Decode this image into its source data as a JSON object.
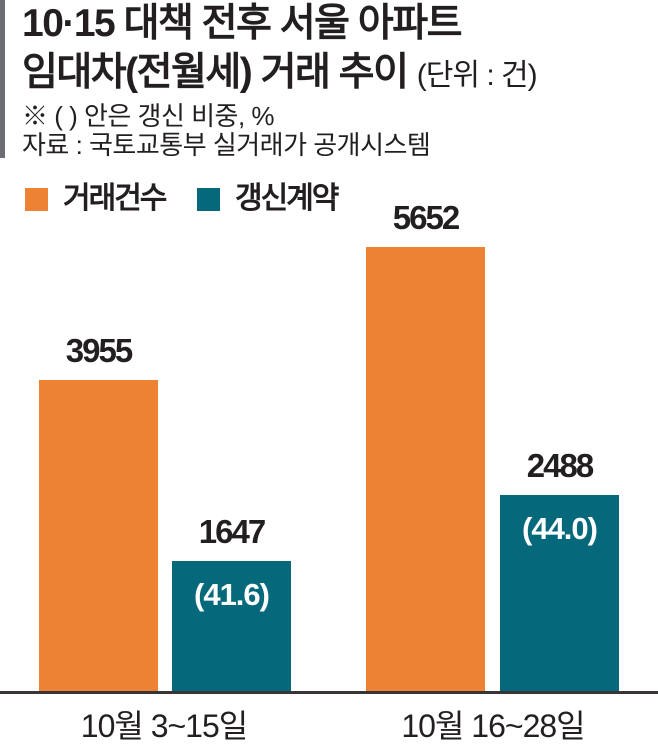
{
  "header": {
    "title_line1": "10·15 대책 전후 서울 아파트",
    "title_line2": "임대차(전월세) 거래 추이",
    "title_unit": "(단위 : 건)",
    "note": "※ ( ) 안은 갱신 비중, %",
    "source": "자료 : 국토교통부 실거래가 공개시스템"
  },
  "legend": [
    {
      "label": "거래건수",
      "color": "#ed8234"
    },
    {
      "label": "갱신계약",
      "color": "#06697b"
    }
  ],
  "chart_data": {
    "type": "bar",
    "title": "10·15 대책 전후 서울 아파트 임대차(전월세) 거래 추이",
    "unit_label": "(단위 : 건)",
    "note": "※ ( ) 안은 갱신 비중, %",
    "source": "자료 : 국토교통부 실거래가 공개시스템",
    "categories": [
      "10월 3~15일",
      "10월 16~28일"
    ],
    "series": [
      {
        "name": "거래건수",
        "color": "#ed8234",
        "values": [
          3955,
          5652
        ]
      },
      {
        "name": "갱신계약",
        "color": "#06697b",
        "values": [
          1647,
          2488
        ],
        "annotations": [
          "(41.6)",
          "(44.0)"
        ]
      }
    ],
    "ylim": [
      0,
      5800
    ],
    "grid": false,
    "axis_lines": "baseline-only",
    "legend_position": "top-left",
    "value_labels": true
  },
  "colors": {
    "orange": "#ed8234",
    "teal": "#06697b",
    "text": "#231f20",
    "axis": "#383534",
    "accent": "#6d6e71"
  }
}
